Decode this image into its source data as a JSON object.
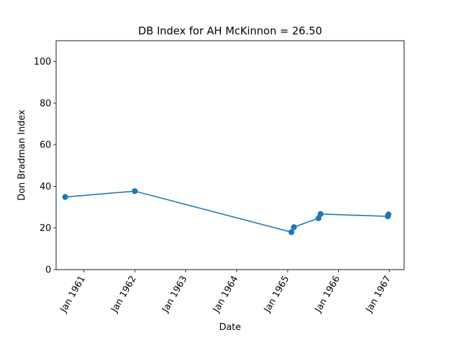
{
  "chart_data": {
    "type": "line",
    "title": "DB Index for AH McKinnon = 26.50",
    "xlabel": "Date",
    "ylabel": "Don Bradman Index",
    "ylim": [
      0,
      110
    ],
    "xlim": [
      "1960-06-16",
      "1967-04-16"
    ],
    "yticks": [
      0,
      20,
      40,
      60,
      80,
      100
    ],
    "xticks": [
      {
        "date": "1961-01-01",
        "label": "Jan 1961"
      },
      {
        "date": "1962-01-01",
        "label": "Jan 1962"
      },
      {
        "date": "1963-01-01",
        "label": "Jan 1963"
      },
      {
        "date": "1964-01-01",
        "label": "Jan 1964"
      },
      {
        "date": "1965-01-01",
        "label": "Jan 1965"
      },
      {
        "date": "1966-01-01",
        "label": "Jan 1966"
      },
      {
        "date": "1967-01-01",
        "label": "Jan 1967"
      }
    ],
    "grid": false,
    "color": "#1f77b4",
    "series": [
      {
        "x": [
          "1960-08-20",
          "1962-01-01",
          "1965-01-28",
          "1965-02-15",
          "1965-08-10",
          "1965-08-25",
          "1966-12-20",
          "1966-12-25"
        ],
        "y": [
          34.9,
          37.7,
          18.0,
          20.4,
          24.7,
          26.7,
          25.6,
          26.5
        ]
      }
    ]
  }
}
